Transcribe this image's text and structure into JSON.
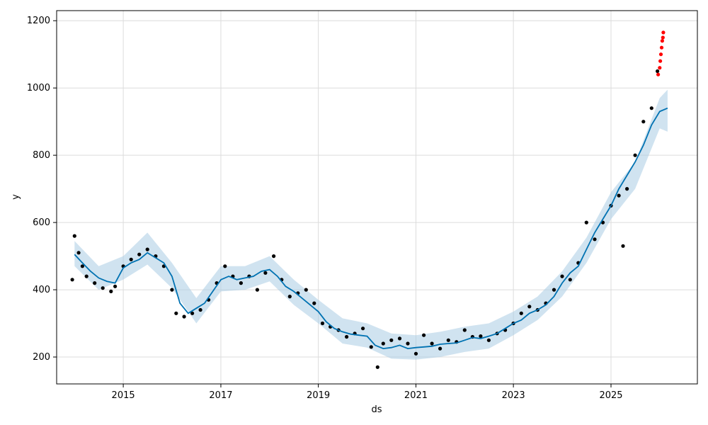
{
  "chart_data": {
    "type": "line",
    "xlabel": "ds",
    "ylabel": "y",
    "xlim": [
      "2013-08-20",
      "2026-10-10"
    ],
    "ylim": [
      120,
      1230
    ],
    "x_tick_labels": [
      "2015",
      "2017",
      "2019",
      "2021",
      "2023",
      "2025"
    ],
    "y_tick_labels": [
      "200",
      "400",
      "600",
      "800",
      "1000",
      "1200"
    ],
    "grid": true,
    "legend": "none",
    "colors": {
      "observed": "#000000",
      "forecast": "#0072b2",
      "uncertainty": "#a9cce3",
      "outliers": "#ff0000"
    },
    "series": [
      {
        "role": "forecast",
        "x": [
          "2014-01-01",
          "2014-03-01",
          "2014-05-01",
          "2014-07-01",
          "2014-09-01",
          "2014-11-01",
          "2015-01-01",
          "2015-03-01",
          "2015-05-01",
          "2015-07-01",
          "2015-09-01",
          "2015-11-01",
          "2016-01-01",
          "2016-03-01",
          "2016-05-01",
          "2016-07-01",
          "2016-09-01",
          "2016-11-01",
          "2017-01-01",
          "2017-03-01",
          "2017-05-01",
          "2017-07-01",
          "2017-09-01",
          "2017-11-01",
          "2018-01-01",
          "2018-03-01",
          "2018-05-01",
          "2018-07-01",
          "2018-09-01",
          "2018-11-01",
          "2019-01-01",
          "2019-03-01",
          "2019-05-01",
          "2019-07-01",
          "2019-09-01",
          "2019-11-01",
          "2020-01-01",
          "2020-03-01",
          "2020-05-01",
          "2020-07-01",
          "2020-09-01",
          "2020-11-01",
          "2021-01-01",
          "2021-03-01",
          "2021-05-01",
          "2021-07-01",
          "2021-09-01",
          "2021-11-01",
          "2022-01-01",
          "2022-03-01",
          "2022-05-01",
          "2022-07-01",
          "2022-09-01",
          "2022-11-01",
          "2023-01-01",
          "2023-03-01",
          "2023-05-01",
          "2023-07-01",
          "2023-09-01",
          "2023-11-01",
          "2024-01-01",
          "2024-03-01",
          "2024-05-01",
          "2024-07-01",
          "2024-09-01",
          "2024-11-01",
          "2025-01-01",
          "2025-03-01",
          "2025-05-01",
          "2025-07-01",
          "2025-09-01",
          "2025-11-01",
          "2026-01-01",
          "2026-03-01"
        ],
        "values": [
          505,
          480,
          455,
          435,
          425,
          420,
          465,
          480,
          490,
          510,
          495,
          480,
          440,
          360,
          330,
          345,
          360,
          395,
          430,
          440,
          430,
          435,
          440,
          455,
          460,
          440,
          410,
          395,
          375,
          355,
          335,
          305,
          285,
          275,
          268,
          265,
          262,
          235,
          225,
          228,
          235,
          225,
          228,
          230,
          232,
          238,
          240,
          242,
          250,
          258,
          255,
          262,
          270,
          285,
          300,
          310,
          330,
          340,
          355,
          380,
          420,
          450,
          470,
          520,
          570,
          610,
          650,
          700,
          740,
          780,
          830,
          890,
          930,
          940
        ]
      },
      {
        "role": "observed",
        "x": [
          "2013-12-15",
          "2014-01-01",
          "2014-02-01",
          "2014-03-01",
          "2014-04-01",
          "2014-06-01",
          "2014-08-01",
          "2014-10-01",
          "2014-11-01",
          "2015-01-01",
          "2015-03-01",
          "2015-05-01",
          "2015-07-01",
          "2015-09-01",
          "2015-11-01",
          "2016-01-01",
          "2016-02-01",
          "2016-04-01",
          "2016-06-01",
          "2016-08-01",
          "2016-10-01",
          "2016-12-01",
          "2017-02-01",
          "2017-04-01",
          "2017-06-01",
          "2017-08-01",
          "2017-10-01",
          "2017-12-01",
          "2018-02-01",
          "2018-04-01",
          "2018-06-01",
          "2018-08-01",
          "2018-10-01",
          "2018-12-01",
          "2019-02-01",
          "2019-04-01",
          "2019-06-01",
          "2019-08-01",
          "2019-10-01",
          "2019-12-01",
          "2020-02-01",
          "2020-03-20",
          "2020-05-01",
          "2020-07-01",
          "2020-09-01",
          "2020-11-01",
          "2021-01-01",
          "2021-03-01",
          "2021-05-01",
          "2021-07-01",
          "2021-09-01",
          "2021-11-01",
          "2022-01-01",
          "2022-03-01",
          "2022-05-01",
          "2022-07-01",
          "2022-09-01",
          "2022-11-01",
          "2023-01-01",
          "2023-03-01",
          "2023-05-01",
          "2023-07-01",
          "2023-09-01",
          "2023-11-01",
          "2024-01-01",
          "2024-03-01",
          "2024-05-01",
          "2024-07-01",
          "2024-09-01",
          "2024-11-01",
          "2025-01-01",
          "2025-03-01",
          "2025-04-01",
          "2025-05-01",
          "2025-07-01",
          "2025-09-01",
          "2025-11-01",
          "2025-12-15"
        ],
        "values": [
          430,
          560,
          510,
          470,
          440,
          420,
          405,
          395,
          410,
          470,
          490,
          505,
          520,
          500,
          470,
          400,
          330,
          320,
          330,
          340,
          370,
          420,
          470,
          440,
          420,
          440,
          400,
          450,
          500,
          430,
          380,
          390,
          400,
          360,
          300,
          290,
          280,
          260,
          270,
          285,
          230,
          170,
          240,
          250,
          255,
          240,
          210,
          265,
          240,
          225,
          250,
          245,
          280,
          260,
          262,
          250,
          270,
          280,
          300,
          330,
          350,
          340,
          360,
          400,
          440,
          430,
          480,
          600,
          550,
          600,
          650,
          680,
          530,
          700,
          800,
          900,
          940,
          1050
        ]
      },
      {
        "role": "outliers",
        "x": [
          "2025-12-20",
          "2026-01-01",
          "2026-01-05",
          "2026-01-10",
          "2026-01-15",
          "2026-01-20",
          "2026-01-25",
          "2026-01-28"
        ],
        "values": [
          1040,
          1060,
          1080,
          1100,
          1120,
          1140,
          1150,
          1165
        ]
      }
    ],
    "uncertainty_band": {
      "x": [
        "2014-01-01",
        "2014-07-01",
        "2015-01-01",
        "2015-07-01",
        "2016-01-01",
        "2016-07-01",
        "2017-01-01",
        "2017-07-01",
        "2018-01-01",
        "2018-07-01",
        "2019-01-01",
        "2019-07-01",
        "2020-01-01",
        "2020-07-01",
        "2021-01-01",
        "2021-07-01",
        "2022-01-01",
        "2022-07-01",
        "2023-01-01",
        "2023-07-01",
        "2024-01-01",
        "2024-07-01",
        "2025-01-01",
        "2025-07-01",
        "2026-01-01",
        "2026-03-01"
      ],
      "lower": [
        470,
        400,
        430,
        475,
        405,
        300,
        395,
        400,
        425,
        355,
        300,
        240,
        228,
        195,
        192,
        200,
        215,
        225,
        265,
        310,
        380,
        480,
        610,
        700,
        880,
        870
      ],
      "upper": [
        545,
        470,
        500,
        570,
        480,
        375,
        470,
        470,
        500,
        430,
        370,
        315,
        300,
        270,
        265,
        275,
        290,
        300,
        335,
        380,
        455,
        555,
        690,
        780,
        970,
        995
      ]
    }
  }
}
